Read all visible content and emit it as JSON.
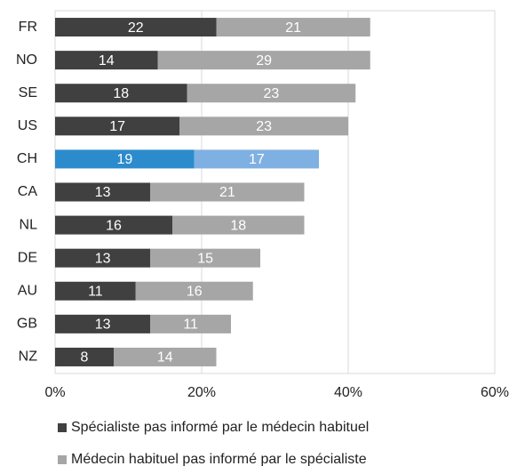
{
  "chart_data": {
    "type": "stacked_barh",
    "categories": [
      "FR",
      "NO",
      "SE",
      "US",
      "CH",
      "CA",
      "NL",
      "DE",
      "AU",
      "GB",
      "NZ"
    ],
    "series": [
      {
        "name": "Spécialiste pas informé par le médecin habituel",
        "color": "#404040",
        "values": [
          22,
          14,
          18,
          17,
          19,
          13,
          16,
          13,
          11,
          13,
          8
        ]
      },
      {
        "name": "Médecin habituel pas informé par le spécialiste",
        "color": "#a6a6a6",
        "values": [
          21,
          29,
          23,
          23,
          17,
          21,
          18,
          15,
          16,
          11,
          14
        ]
      }
    ],
    "highlight_index": 4,
    "highlight_colors": [
      "#2b8bcd",
      "#7fb0e2"
    ],
    "xlim": [
      0,
      60
    ],
    "xticks": [
      {
        "value": 0,
        "label": "0%"
      },
      {
        "value": 20,
        "label": "20%"
      },
      {
        "value": 40,
        "label": "40%"
      },
      {
        "value": 60,
        "label": "60%"
      }
    ],
    "grid": true,
    "legend": "bottom"
  }
}
